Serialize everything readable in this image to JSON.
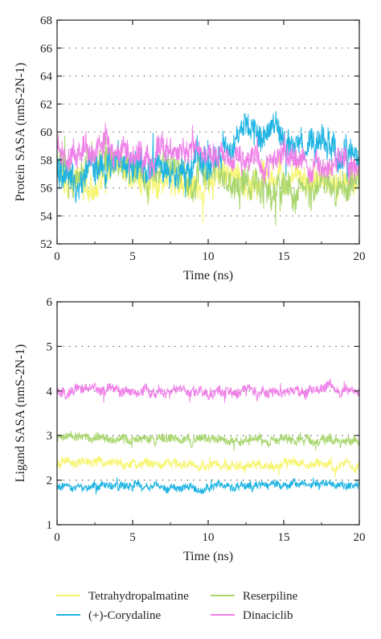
{
  "chart_data": [
    {
      "type": "line",
      "xlabel": "Time (ns)",
      "ylabel": "Protein SASA (nmS-2N-1)",
      "xlim": [
        0,
        20
      ],
      "ylim": [
        52,
        68
      ],
      "xticks": [
        0,
        5,
        10,
        15,
        20
      ],
      "yticks": [
        52,
        54,
        56,
        58,
        60,
        62,
        64,
        66,
        68
      ],
      "grid": "dotted horizontal",
      "series": [
        {
          "name": "Tetrahydropalmatine",
          "color": "#f7f570",
          "x": [
            0,
            1,
            2,
            3,
            4,
            5,
            6,
            7,
            8,
            9,
            10,
            11,
            12,
            13,
            14,
            15,
            16,
            17,
            18,
            19,
            20
          ],
          "values": [
            57.5,
            56.5,
            56.0,
            57.0,
            57.5,
            56.8,
            56.5,
            57.0,
            56.8,
            56.5,
            56.5,
            56.8,
            57.0,
            56.5,
            56.8,
            56.5,
            56.8,
            56.5,
            56.5,
            56.2,
            56.0
          ],
          "noise": 1.2
        },
        {
          "name": "Reserpiline",
          "color": "#a9d66f",
          "x": [
            0,
            1,
            2,
            3,
            4,
            5,
            6,
            7,
            8,
            9,
            10,
            11,
            12,
            13,
            14,
            15,
            16,
            17,
            18,
            19,
            20
          ],
          "values": [
            57.5,
            57.0,
            57.5,
            57.8,
            57.5,
            57.5,
            57.2,
            57.5,
            57.0,
            57.0,
            56.5,
            56.5,
            56.0,
            56.0,
            55.8,
            56.0,
            56.0,
            56.5,
            56.5,
            56.0,
            55.5
          ],
          "noise": 1.3
        },
        {
          "name": "(+)-Corydaline",
          "color": "#1fb4e3",
          "x": [
            0,
            1,
            2,
            3,
            4,
            5,
            6,
            7,
            8,
            9,
            10,
            11,
            12,
            13,
            14,
            15,
            16,
            17,
            18,
            19,
            20
          ],
          "values": [
            57.0,
            56.8,
            57.0,
            57.2,
            57.5,
            57.5,
            57.5,
            57.5,
            57.0,
            57.5,
            58.0,
            58.5,
            59.5,
            59.5,
            60.0,
            59.5,
            59.5,
            59.0,
            59.0,
            59.0,
            58.5
          ],
          "noise": 1.3
        },
        {
          "name": "Dinaciclib",
          "color": "#ef7fe8",
          "x": [
            0,
            1,
            2,
            3,
            4,
            5,
            6,
            7,
            8,
            9,
            10,
            11,
            12,
            13,
            14,
            15,
            16,
            17,
            18,
            19,
            20
          ],
          "values": [
            58.5,
            58.5,
            58.8,
            59.0,
            58.5,
            58.5,
            58.2,
            58.5,
            58.5,
            58.5,
            58.5,
            58.2,
            58.0,
            58.0,
            58.0,
            58.0,
            58.0,
            57.8,
            57.5,
            57.5,
            57.0
          ],
          "noise": 1.1
        }
      ]
    },
    {
      "type": "line",
      "xlabel": "Time (ns)",
      "ylabel": "Ligand SASA (nmS-2N-1)",
      "xlim": [
        0,
        20
      ],
      "ylim": [
        1,
        6
      ],
      "xticks": [
        0,
        5,
        10,
        15,
        20
      ],
      "yticks": [
        1,
        2,
        3,
        4,
        5,
        6
      ],
      "grid": "dotted horizontal",
      "series": [
        {
          "name": "Reserpiline",
          "color": "#a9d66f",
          "x": [
            0,
            5,
            10,
            15,
            20
          ],
          "values": [
            2.95,
            2.9,
            2.9,
            2.9,
            2.9
          ],
          "noise": 0.12
        },
        {
          "name": "Tetrahydropalmatine",
          "color": "#f7f570",
          "x": [
            0,
            5,
            10,
            15,
            20
          ],
          "values": [
            2.4,
            2.4,
            2.35,
            2.35,
            2.3
          ],
          "noise": 0.12
        },
        {
          "name": "(+)-Corydaline",
          "color": "#1fb4e3",
          "x": [
            0,
            5,
            10,
            15,
            20
          ],
          "values": [
            1.85,
            1.85,
            1.85,
            1.9,
            1.9
          ],
          "noise": 0.11
        },
        {
          "name": "Dinaciclib",
          "color": "#ef7fe8",
          "x": [
            0,
            5,
            10,
            15,
            20
          ],
          "values": [
            4.0,
            4.0,
            4.0,
            4.0,
            4.05
          ],
          "noise": 0.14
        }
      ]
    }
  ],
  "legend": {
    "placement": "bottom",
    "items": [
      {
        "name": "Tetrahydropalmatine",
        "color": "#f7f570"
      },
      {
        "name": "Reserpiline",
        "color": "#a9d66f"
      },
      {
        "name": "(+)-Corydaline",
        "color": "#1fb4e3"
      },
      {
        "name": "Dinaciclib",
        "color": "#ef7fe8"
      }
    ]
  }
}
